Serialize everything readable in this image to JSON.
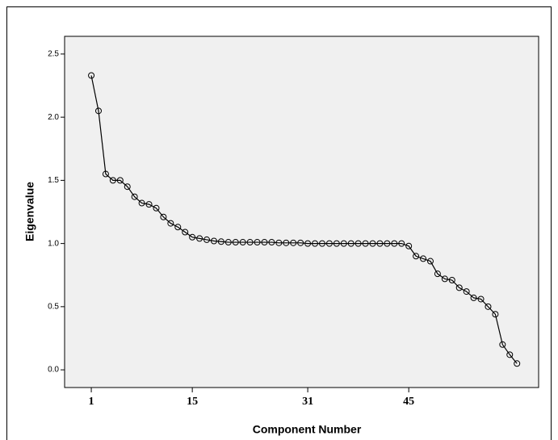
{
  "chart_data": {
    "type": "line",
    "xlabel": "Component Number",
    "ylabel": "Eigenvalue",
    "x": [
      1,
      2,
      3,
      4,
      5,
      6,
      7,
      8,
      9,
      10,
      11,
      12,
      13,
      14,
      15,
      16,
      17,
      18,
      19,
      20,
      21,
      22,
      23,
      24,
      25,
      26,
      27,
      28,
      29,
      30,
      31,
      32,
      33,
      34,
      35,
      36,
      37,
      38,
      39,
      40,
      41,
      42,
      43,
      44,
      45,
      46,
      47,
      48,
      49,
      50,
      51,
      52,
      53,
      54,
      55,
      56,
      57,
      58,
      59,
      60
    ],
    "series": [
      {
        "name": "Eigenvalue",
        "color": "#000000",
        "values": [
          2.33,
          2.05,
          1.55,
          1.5,
          1.5,
          1.45,
          1.37,
          1.32,
          1.31,
          1.28,
          1.21,
          1.16,
          1.13,
          1.09,
          1.05,
          1.04,
          1.03,
          1.02,
          1.015,
          1.01,
          1.01,
          1.01,
          1.01,
          1.01,
          1.01,
          1.01,
          1.005,
          1.005,
          1.005,
          1.005,
          1.0,
          1.0,
          1.0,
          1.0,
          1.0,
          1.0,
          1.0,
          1.0,
          1.0,
          1.0,
          1.0,
          1.0,
          1.0,
          1.0,
          0.98,
          0.9,
          0.88,
          0.86,
          0.76,
          0.72,
          0.71,
          0.65,
          0.62,
          0.57,
          0.56,
          0.5,
          0.44,
          0.2,
          0.12,
          0.05
        ]
      }
    ],
    "xlim": [
      -2.7,
      63.0
    ],
    "xticks": [
      1,
      15,
      31,
      45
    ],
    "ylim": [
      -0.14,
      2.64
    ],
    "yticks": [
      {
        "value": 0,
        "label": "0.0"
      },
      {
        "value": 0.5,
        "label": "0.5"
      },
      {
        "value": 1,
        "label": "1.0"
      },
      {
        "value": 1.5,
        "label": "1.5"
      },
      {
        "value": 2,
        "label": "2.0"
      },
      {
        "value": 2.5,
        "label": "2.5"
      }
    ],
    "grid": false
  }
}
